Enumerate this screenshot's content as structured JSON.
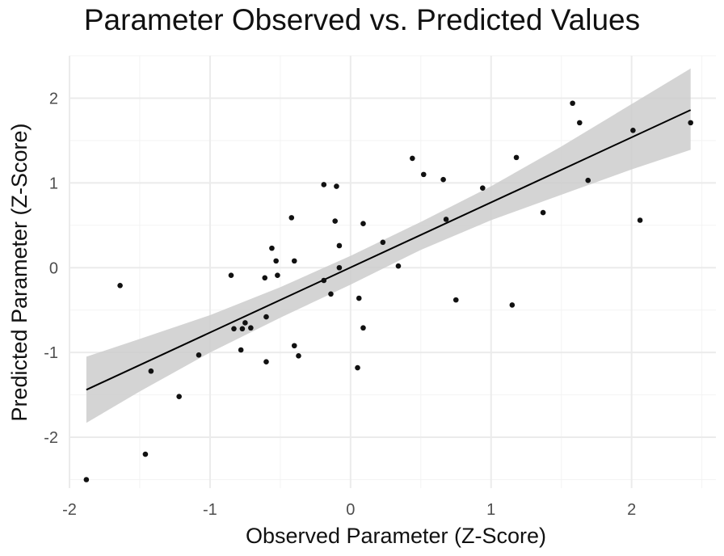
{
  "chart_data": {
    "type": "scatter",
    "title": "Parameter Observed vs. Predicted Values",
    "xlabel": "Observed Parameter (Z-Score)",
    "ylabel": "Predicted Parameter (Z-Score)",
    "xlim": [
      -2.0,
      2.6
    ],
    "ylim": [
      -2.6,
      2.5
    ],
    "x_ticks": [
      -2,
      -1,
      0,
      1,
      2
    ],
    "y_ticks": [
      -2,
      -1,
      0,
      1,
      2
    ],
    "x_tick_labels": [
      "-2",
      "-1",
      "0",
      "1",
      "2"
    ],
    "y_tick_labels": [
      "-2",
      "-1",
      "0",
      "1",
      "2"
    ],
    "grid": true,
    "points": [
      {
        "x": -1.88,
        "y": -2.5
      },
      {
        "x": -1.46,
        "y": -2.2
      },
      {
        "x": -1.42,
        "y": -1.22
      },
      {
        "x": -1.22,
        "y": -1.52
      },
      {
        "x": -1.64,
        "y": -0.21
      },
      {
        "x": -1.08,
        "y": -1.03
      },
      {
        "x": -0.85,
        "y": -0.09
      },
      {
        "x": -0.83,
        "y": -0.72
      },
      {
        "x": -0.77,
        "y": -0.72
      },
      {
        "x": -0.75,
        "y": -0.65
      },
      {
        "x": -0.71,
        "y": -0.71
      },
      {
        "x": -0.78,
        "y": -0.97
      },
      {
        "x": -0.61,
        "y": -0.12
      },
      {
        "x": -0.6,
        "y": -0.58
      },
      {
        "x": -0.6,
        "y": -1.11
      },
      {
        "x": -0.56,
        "y": 0.23
      },
      {
        "x": -0.53,
        "y": 0.08
      },
      {
        "x": -0.52,
        "y": -0.09
      },
      {
        "x": -0.42,
        "y": 0.59
      },
      {
        "x": -0.4,
        "y": 0.08
      },
      {
        "x": -0.4,
        "y": -0.92
      },
      {
        "x": -0.37,
        "y": -1.04
      },
      {
        "x": -0.19,
        "y": 0.98
      },
      {
        "x": -0.19,
        "y": -0.15
      },
      {
        "x": -0.14,
        "y": -0.31
      },
      {
        "x": -0.11,
        "y": 0.55
      },
      {
        "x": -0.1,
        "y": 0.96
      },
      {
        "x": -0.08,
        "y": 0.26
      },
      {
        "x": -0.08,
        "y": 0.0
      },
      {
        "x": 0.05,
        "y": -1.18
      },
      {
        "x": 0.06,
        "y": -0.36
      },
      {
        "x": 0.09,
        "y": 0.52
      },
      {
        "x": 0.09,
        "y": -0.71
      },
      {
        "x": 0.23,
        "y": 0.3
      },
      {
        "x": 0.34,
        "y": 0.02
      },
      {
        "x": 0.44,
        "y": 1.29
      },
      {
        "x": 0.52,
        "y": 1.1
      },
      {
        "x": 0.66,
        "y": 1.04
      },
      {
        "x": 0.68,
        "y": 0.57
      },
      {
        "x": 0.75,
        "y": -0.38
      },
      {
        "x": 0.94,
        "y": 0.94
      },
      {
        "x": 1.15,
        "y": -0.44
      },
      {
        "x": 1.18,
        "y": 1.3
      },
      {
        "x": 1.37,
        "y": 0.65
      },
      {
        "x": 1.58,
        "y": 1.94
      },
      {
        "x": 1.63,
        "y": 1.71
      },
      {
        "x": 1.69,
        "y": 1.03
      },
      {
        "x": 2.01,
        "y": 1.62
      },
      {
        "x": 2.06,
        "y": 0.56
      },
      {
        "x": 2.42,
        "y": 1.71
      }
    ],
    "fit_line": {
      "x": [
        -1.88,
        2.42
      ],
      "y": [
        -1.44,
        1.86
      ]
    },
    "confidence_band": {
      "x": [
        -1.88,
        -1.5,
        -1.0,
        -0.5,
        0.0,
        0.5,
        1.0,
        1.5,
        2.0,
        2.42
      ],
      "upper": [
        -1.05,
        -0.84,
        -0.56,
        -0.23,
        0.14,
        0.54,
        0.96,
        1.43,
        1.93,
        2.35
      ],
      "lower": [
        -1.83,
        -1.46,
        -1.0,
        -0.59,
        -0.2,
        0.21,
        0.56,
        0.86,
        1.16,
        1.39
      ]
    },
    "colors": {
      "points": "#111111",
      "fit_line": "#000000",
      "band": "#cccccc",
      "grid_major": "#ebebeb",
      "grid_minor": "#f3f3f3"
    }
  }
}
